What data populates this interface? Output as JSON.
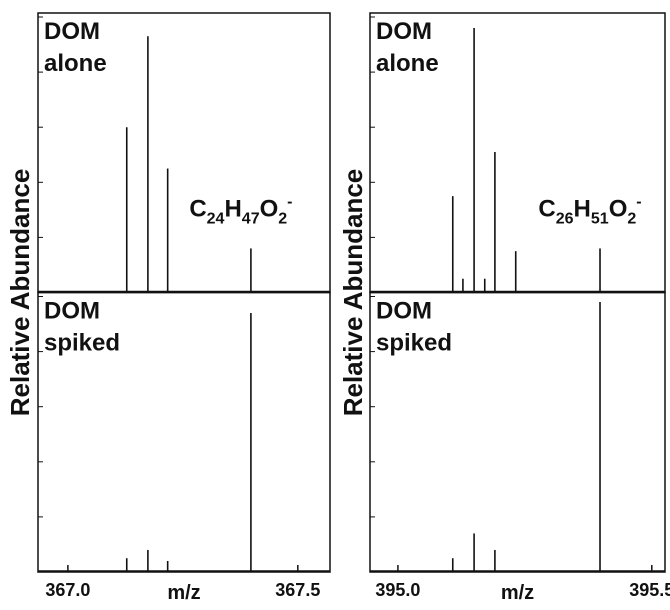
{
  "chart_data": [
    {
      "type": "stem",
      "ylabel": "Relative Abundance",
      "xlabel": "m/z",
      "xlim": [
        366.935,
        367.57
      ],
      "xticks": [
        {
          "value": 367,
          "label": "367.0"
        },
        {
          "value": 367.5,
          "label": "367.5"
        }
      ],
      "ylim": [
        0,
        100
      ],
      "yticks": [
        0,
        20,
        40,
        60,
        80,
        100
      ],
      "series": [
        {
          "name_lines": [
            "DOM",
            "alone"
          ],
          "color": "#111111",
          "x": [
            367.128,
            367.174,
            367.217,
            367.398
          ],
          "values": [
            60,
            93,
            45,
            16
          ],
          "annotation": [
            {
              "text": "C",
              "style": "base"
            },
            {
              "text": "24",
              "style": "sub"
            },
            {
              "text": "H",
              "style": "base"
            },
            {
              "text": "47",
              "style": "sub"
            },
            {
              "text": "O",
              "style": "base"
            },
            {
              "text": "2",
              "style": "sub"
            },
            {
              "text": "-",
              "style": "sup"
            }
          ]
        },
        {
          "name_lines": [
            "DOM",
            "spiked"
          ],
          "color": "#111111",
          "x": [
            367.128,
            367.174,
            367.217,
            367.398
          ],
          "values": [
            5,
            8,
            4,
            94
          ]
        }
      ]
    },
    {
      "type": "stem",
      "ylabel": "Relative Abundance",
      "xlabel": "m/z",
      "xlim": [
        394.945,
        395.526
      ],
      "xticks": [
        {
          "value": 395,
          "label": "395.0"
        },
        {
          "value": 395.5,
          "label": "395.5"
        }
      ],
      "ylim": [
        0,
        100
      ],
      "yticks": [
        0,
        20,
        40,
        60,
        80,
        100
      ],
      "series": [
        {
          "name_lines": [
            "DOM",
            "alone"
          ],
          "color": "#111111",
          "x": [
            395.108,
            395.128,
            395.15,
            395.171,
            395.191,
            395.232,
            395.398
          ],
          "values": [
            35,
            5,
            96,
            5,
            51,
            15,
            16
          ],
          "annotation": [
            {
              "text": "C",
              "style": "base"
            },
            {
              "text": "26",
              "style": "sub"
            },
            {
              "text": "H",
              "style": "base"
            },
            {
              "text": "51",
              "style": "sub"
            },
            {
              "text": "O",
              "style": "base"
            },
            {
              "text": "2",
              "style": "sub"
            },
            {
              "text": "-",
              "style": "sup"
            }
          ]
        },
        {
          "name_lines": [
            "DOM",
            "spiked"
          ],
          "color": "#111111",
          "x": [
            395.108,
            395.15,
            395.191,
            395.398
          ],
          "values": [
            5,
            14,
            8,
            98
          ]
        }
      ]
    }
  ]
}
